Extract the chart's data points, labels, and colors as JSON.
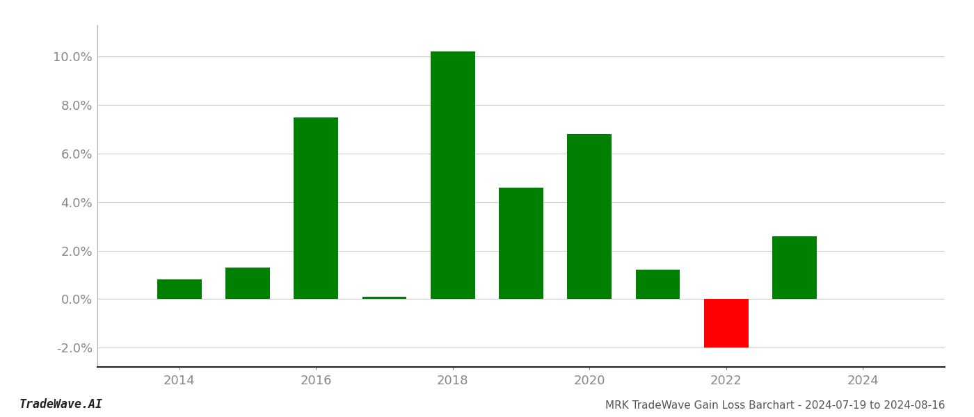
{
  "years": [
    2014,
    2015,
    2016,
    2017,
    2018,
    2019,
    2020,
    2021,
    2022,
    2023
  ],
  "values": [
    0.008,
    0.013,
    0.075,
    0.001,
    0.102,
    0.046,
    0.068,
    0.012,
    -0.02,
    0.026
  ],
  "colors": [
    "#008000",
    "#008000",
    "#008000",
    "#008000",
    "#008000",
    "#008000",
    "#008000",
    "#008000",
    "#ff0000",
    "#008000"
  ],
  "title": "MRK TradeWave Gain Loss Barchart - 2024-07-19 to 2024-08-16",
  "watermark": "TradeWave.AI",
  "ylim": [
    -0.028,
    0.113
  ],
  "yticks": [
    -0.02,
    0.0,
    0.02,
    0.04,
    0.06,
    0.08,
    0.1
  ],
  "xticks": [
    2014,
    2016,
    2018,
    2020,
    2022,
    2024
  ],
  "xlim": [
    2012.8,
    2025.2
  ],
  "background_color": "#ffffff",
  "grid_color": "#cccccc",
  "bar_width": 0.65
}
